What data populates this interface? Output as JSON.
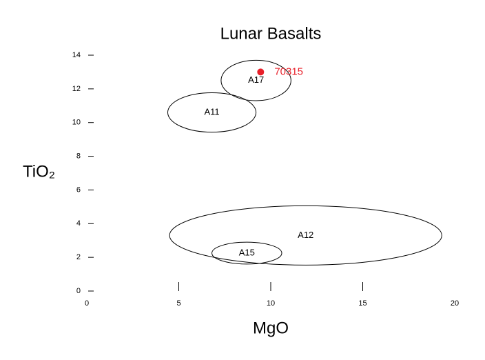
{
  "chart_data": {
    "type": "scatter",
    "title": "Lunar Basalts",
    "x_label": "MgO",
    "y_label": "TiO₂",
    "xlim": [
      0,
      20
    ],
    "ylim": [
      0,
      14
    ],
    "xticks": [
      0,
      5,
      10,
      15,
      20
    ],
    "yticks": [
      0,
      2,
      4,
      6,
      8,
      10,
      12,
      14
    ],
    "fields": [
      {
        "name": "A17",
        "cx": 9.2,
        "cy": 12.5,
        "rx": 1.9,
        "ry": 1.2
      },
      {
        "name": "A11",
        "cx": 6.8,
        "cy": 10.6,
        "rx": 2.4,
        "ry": 1.17
      },
      {
        "name": "A12",
        "cx": 11.9,
        "cy": 3.3,
        "rx": 7.4,
        "ry": 1.76
      },
      {
        "name": "A15",
        "cx": 8.7,
        "cy": 2.25,
        "rx": 1.9,
        "ry": 0.65
      }
    ],
    "series": [
      {
        "name": "70315",
        "color": "#e8202a",
        "x": [
          9.45
        ],
        "values": [
          13.0
        ]
      }
    ]
  }
}
